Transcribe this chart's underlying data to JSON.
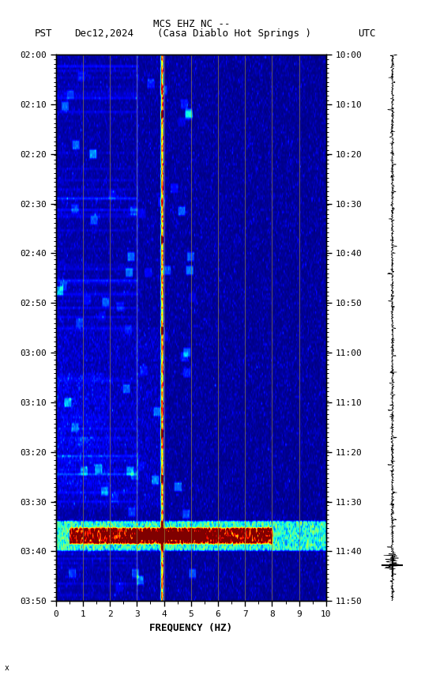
{
  "title_line1": "MCS EHZ NC --",
  "title_line2_pst": "PST",
  "title_line2_date": "Dec12,2024",
  "title_line2_loc": "(Casa Diablo Hot Springs )",
  "title_line2_utc": "UTC",
  "xlabel": "FREQUENCY (HZ)",
  "freq_min": 0,
  "freq_max": 10,
  "pst_ticks": [
    "02:00",
    "02:10",
    "02:20",
    "02:30",
    "02:40",
    "02:50",
    "03:00",
    "03:10",
    "03:20",
    "03:30",
    "03:40",
    "03:50"
  ],
  "utc_ticks": [
    "10:00",
    "10:10",
    "10:20",
    "10:30",
    "10:40",
    "10:50",
    "11:00",
    "11:10",
    "11:20",
    "11:30",
    "11:40",
    "11:50"
  ],
  "freq_ticks": [
    0,
    1,
    2,
    3,
    4,
    5,
    6,
    7,
    8,
    9,
    10
  ],
  "vertical_lines_freq": [
    1,
    2,
    3,
    4,
    5,
    6,
    7,
    8,
    9
  ],
  "bg_color": "white",
  "noise_seed": 42,
  "colormap": "jet",
  "fig_width": 5.52,
  "fig_height": 8.64,
  "dpi": 100
}
